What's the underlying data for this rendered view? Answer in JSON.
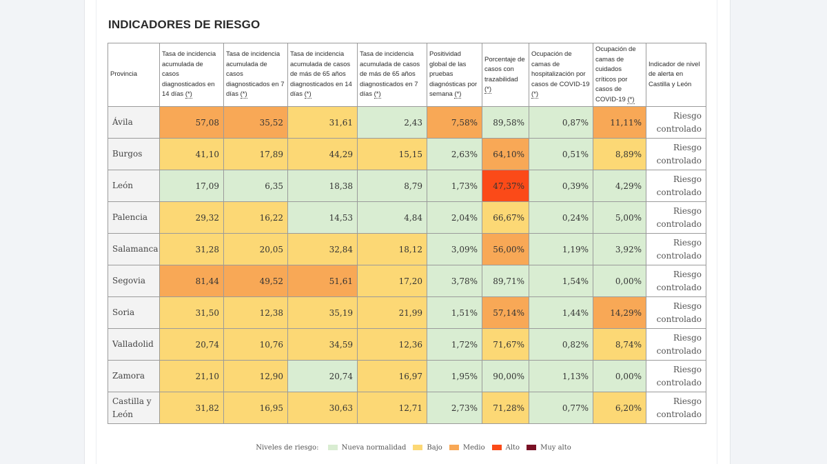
{
  "title": "INDICADORES DE RIESGO",
  "colors": {
    "nueva": "#d9edd2",
    "bajo": "#fcd875",
    "medio": "#f8a856",
    "alto": "#fb4a18",
    "muyalto": "#7a1125"
  },
  "table": {
    "headers": [
      {
        "label": "Provincia",
        "note": ""
      },
      {
        "label": "Tasa de incidencia acumulada de casos diagnosticados en 14 días ",
        "note": "(*)"
      },
      {
        "label": "Tasa de incidencia acumulada de casos diagnosticados en 7 días ",
        "note": "(*)"
      },
      {
        "label": "Tasa de incidencia acumulada de casos de más de 65 años diagnosticados en 14 días ",
        "note": "(*)"
      },
      {
        "label": "Tasa de incidencia acumulada de casos de más de 65 años diagnosticados en 7 días ",
        "note": "(*)"
      },
      {
        "label": "Positividad global de las pruebas diagnósticas por semana ",
        "note": "(*)"
      },
      {
        "label": "Porcentaje de casos con trazabilidad ",
        "note": "(*)"
      },
      {
        "label": "Ocupación de camas de hospitalización por casos de COVID-19 ",
        "note": "(*)"
      },
      {
        "label": "Ocupación de camas de cuidados críticos por casos de COVID-19 ",
        "note": "(*)"
      },
      {
        "label": "Indicador de nivel de alerta en Castilla y León",
        "note": ""
      }
    ],
    "rows": [
      {
        "province": "Ávila",
        "cells": [
          {
            "v": "57,08",
            "l": "medio"
          },
          {
            "v": "35,52",
            "l": "medio"
          },
          {
            "v": "31,61",
            "l": "bajo"
          },
          {
            "v": "2,43",
            "l": "nueva"
          },
          {
            "v": "7,58%",
            "l": "medio"
          },
          {
            "v": "89,58%",
            "l": "nueva"
          },
          {
            "v": "0,87%",
            "l": "nueva"
          },
          {
            "v": "11,11%",
            "l": "medio"
          }
        ],
        "alert": "Riesgo controlado"
      },
      {
        "province": "Burgos",
        "cells": [
          {
            "v": "41,10",
            "l": "bajo"
          },
          {
            "v": "17,89",
            "l": "bajo"
          },
          {
            "v": "44,29",
            "l": "bajo"
          },
          {
            "v": "15,15",
            "l": "bajo"
          },
          {
            "v": "2,63%",
            "l": "nueva"
          },
          {
            "v": "64,10%",
            "l": "medio"
          },
          {
            "v": "0,51%",
            "l": "nueva"
          },
          {
            "v": "8,89%",
            "l": "bajo"
          }
        ],
        "alert": "Riesgo controlado"
      },
      {
        "province": "León",
        "cells": [
          {
            "v": "17,09",
            "l": "nueva"
          },
          {
            "v": "6,35",
            "l": "nueva"
          },
          {
            "v": "18,38",
            "l": "nueva"
          },
          {
            "v": "8,79",
            "l": "nueva"
          },
          {
            "v": "1,73%",
            "l": "nueva"
          },
          {
            "v": "47,37%",
            "l": "alto"
          },
          {
            "v": "0,39%",
            "l": "nueva"
          },
          {
            "v": "4,29%",
            "l": "nueva"
          }
        ],
        "alert": "Riesgo controlado"
      },
      {
        "province": "Palencia",
        "cells": [
          {
            "v": "29,32",
            "l": "bajo"
          },
          {
            "v": "16,22",
            "l": "bajo"
          },
          {
            "v": "14,53",
            "l": "nueva"
          },
          {
            "v": "4,84",
            "l": "nueva"
          },
          {
            "v": "2,04%",
            "l": "nueva"
          },
          {
            "v": "66,67%",
            "l": "bajo"
          },
          {
            "v": "0,24%",
            "l": "nueva"
          },
          {
            "v": "5,00%",
            "l": "nueva"
          }
        ],
        "alert": "Riesgo controlado"
      },
      {
        "province": "Salamanca",
        "cells": [
          {
            "v": "31,28",
            "l": "bajo"
          },
          {
            "v": "20,05",
            "l": "bajo"
          },
          {
            "v": "32,84",
            "l": "bajo"
          },
          {
            "v": "18,12",
            "l": "bajo"
          },
          {
            "v": "3,09%",
            "l": "nueva"
          },
          {
            "v": "56,00%",
            "l": "medio"
          },
          {
            "v": "1,19%",
            "l": "nueva"
          },
          {
            "v": "3,92%",
            "l": "nueva"
          }
        ],
        "alert": "Riesgo controlado"
      },
      {
        "province": "Segovia",
        "cells": [
          {
            "v": "81,44",
            "l": "medio"
          },
          {
            "v": "49,52",
            "l": "medio"
          },
          {
            "v": "51,61",
            "l": "medio"
          },
          {
            "v": "17,20",
            "l": "bajo"
          },
          {
            "v": "3,78%",
            "l": "nueva"
          },
          {
            "v": "89,71%",
            "l": "nueva"
          },
          {
            "v": "1,54%",
            "l": "nueva"
          },
          {
            "v": "0,00%",
            "l": "nueva"
          }
        ],
        "alert": "Riesgo controlado"
      },
      {
        "province": "Soria",
        "cells": [
          {
            "v": "31,50",
            "l": "bajo"
          },
          {
            "v": "12,38",
            "l": "bajo"
          },
          {
            "v": "35,19",
            "l": "bajo"
          },
          {
            "v": "21,99",
            "l": "bajo"
          },
          {
            "v": "1,51%",
            "l": "nueva"
          },
          {
            "v": "57,14%",
            "l": "medio"
          },
          {
            "v": "1,44%",
            "l": "nueva"
          },
          {
            "v": "14,29%",
            "l": "medio"
          }
        ],
        "alert": "Riesgo controlado"
      },
      {
        "province": "Valladolid",
        "cells": [
          {
            "v": "20,74",
            "l": "bajo"
          },
          {
            "v": "10,76",
            "l": "bajo"
          },
          {
            "v": "34,59",
            "l": "bajo"
          },
          {
            "v": "12,36",
            "l": "bajo"
          },
          {
            "v": "1,72%",
            "l": "nueva"
          },
          {
            "v": "71,67%",
            "l": "bajo"
          },
          {
            "v": "0,82%",
            "l": "nueva"
          },
          {
            "v": "8,74%",
            "l": "bajo"
          }
        ],
        "alert": "Riesgo controlado"
      },
      {
        "province": "Zamora",
        "cells": [
          {
            "v": "21,10",
            "l": "bajo"
          },
          {
            "v": "12,90",
            "l": "bajo"
          },
          {
            "v": "20,74",
            "l": "nueva"
          },
          {
            "v": "16,97",
            "l": "bajo"
          },
          {
            "v": "1,95%",
            "l": "nueva"
          },
          {
            "v": "90,00%",
            "l": "nueva"
          },
          {
            "v": "1,13%",
            "l": "nueva"
          },
          {
            "v": "0,00%",
            "l": "nueva"
          }
        ],
        "alert": "Riesgo controlado"
      },
      {
        "province": "Castilla y León",
        "cells": [
          {
            "v": "31,82",
            "l": "bajo"
          },
          {
            "v": "16,95",
            "l": "bajo"
          },
          {
            "v": "30,63",
            "l": "bajo"
          },
          {
            "v": "12,71",
            "l": "bajo"
          },
          {
            "v": "2,73%",
            "l": "nueva"
          },
          {
            "v": "71,28%",
            "l": "bajo"
          },
          {
            "v": "0,77%",
            "l": "nueva"
          },
          {
            "v": "6,20%",
            "l": "bajo"
          }
        ],
        "alert": "Riesgo controlado"
      }
    ]
  },
  "legend": {
    "title": "Niveles de riesgo:",
    "items": [
      {
        "label": "Nueva normalidad",
        "level": "nueva"
      },
      {
        "label": "Bajo",
        "level": "bajo"
      },
      {
        "label": "Medio",
        "level": "medio"
      },
      {
        "label": "Alto",
        "level": "alto"
      },
      {
        "label": "Muy alto",
        "level": "muyalto"
      }
    ]
  }
}
